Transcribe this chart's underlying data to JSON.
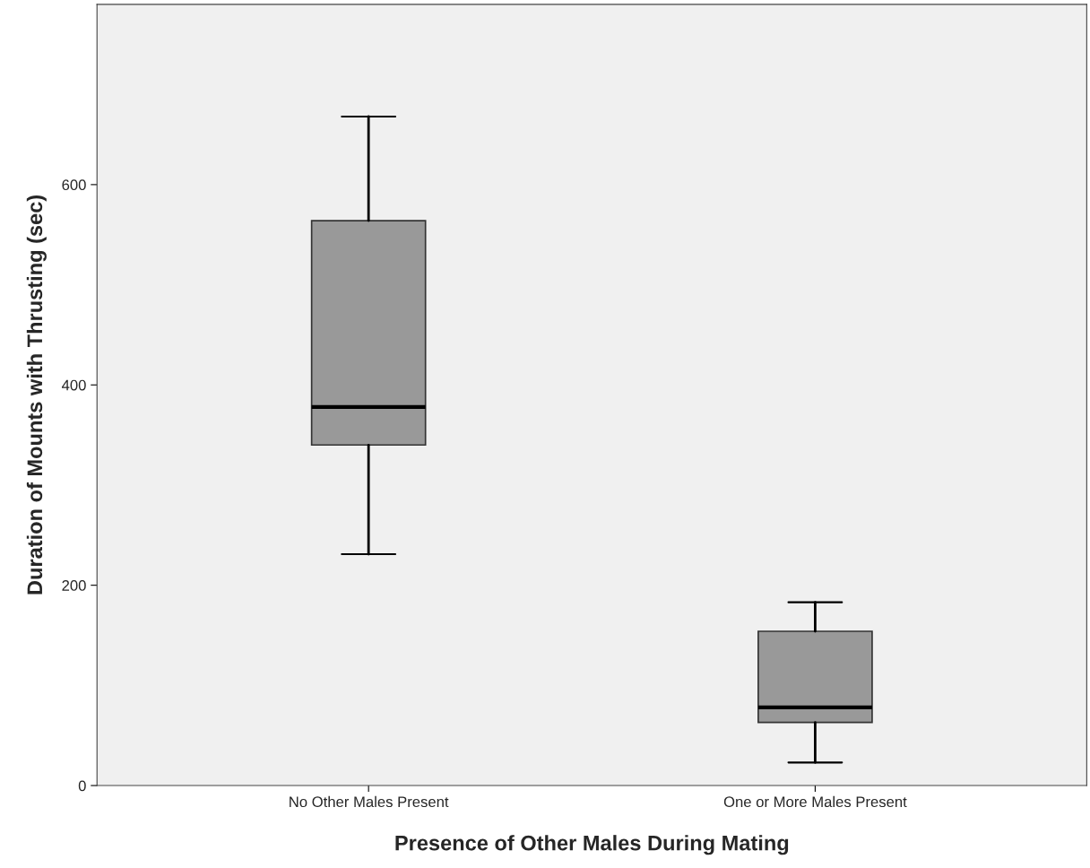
{
  "chart_data": {
    "type": "box",
    "xlabel": "Presence of Other Males During Mating",
    "ylabel": "Duration of Mounts with Thrusting (sec)",
    "categories": [
      "No Other Males Present",
      "One or More Males Present"
    ],
    "boxes": [
      {
        "low": 231,
        "q1": 340,
        "median": 378,
        "q3": 564,
        "high": 668
      },
      {
        "low": 23,
        "q1": 63,
        "median": 78,
        "q3": 154,
        "high": 183
      }
    ],
    "color": "#999999",
    "ylim": [
      0,
      780
    ],
    "yticks": [
      0,
      200,
      400,
      600
    ],
    "grid": false
  }
}
